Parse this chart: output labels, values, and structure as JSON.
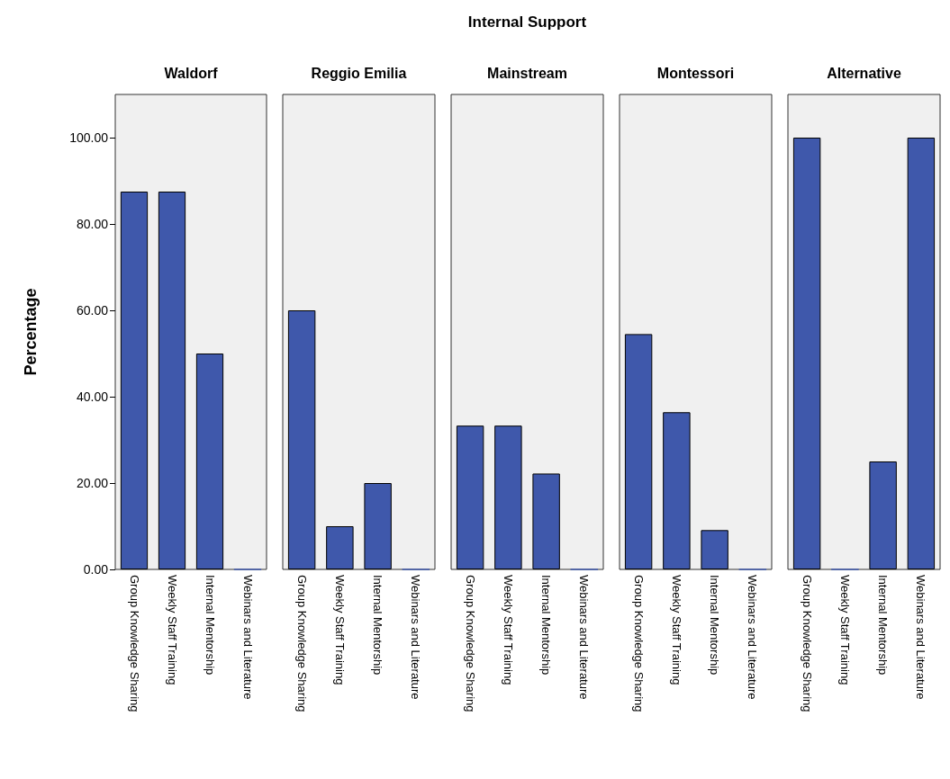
{
  "chart_data": [
    {
      "type": "bar",
      "subtitle": "Waldorf",
      "ylabel": "Percentage",
      "categories": [
        "Group Knowledge Sharing",
        "Weekly Staff Training",
        "Internal Mentorship",
        "Webinars and Literature"
      ],
      "values": [
        87.5,
        87.5,
        50,
        0
      ],
      "color": "#3f58ab",
      "ylim": [
        0,
        110
      ],
      "yticks": [
        {
          "value": 0,
          "label": "0.00"
        },
        {
          "value": 20,
          "label": "20.00"
        },
        {
          "value": 40,
          "label": "40.00"
        },
        {
          "value": 60,
          "label": "60.00"
        },
        {
          "value": 80,
          "label": "80.00"
        },
        {
          "value": 100,
          "label": "100.00"
        }
      ],
      "grid": false
    },
    {
      "type": "bar",
      "subtitle": "Reggio Emilia",
      "categories": [
        "Group Knowledge Sharing",
        "Weekly Staff Training",
        "Internal Mentorship",
        "Webinars and Literature"
      ],
      "values": [
        60,
        10,
        20,
        0
      ],
      "color": "#3f58ab",
      "ylim": [
        0,
        110
      ],
      "tick_labels": "x",
      "grid": false
    },
    {
      "type": "bar",
      "title": "Internal Support",
      "subtitle": "Mainstream",
      "categories": [
        "Group Knowledge Sharing",
        "Weekly Staff Training",
        "Internal Mentorship",
        "Webinars and Literature"
      ],
      "values": [
        33.3,
        33.3,
        22.2,
        0
      ],
      "color": "#3f58ab",
      "ylim": [
        0,
        110
      ],
      "tick_labels": "x",
      "grid": false
    },
    {
      "type": "bar",
      "subtitle": "Montessori",
      "categories": [
        "Group Knowledge Sharing",
        "Weekly Staff Training",
        "Internal Mentorship",
        "Webinars and Literature"
      ],
      "values": [
        54.5,
        36.4,
        9.1,
        0
      ],
      "color": "#3f58ab",
      "ylim": [
        0,
        110
      ],
      "tick_labels": "x",
      "grid": false
    },
    {
      "type": "bar",
      "subtitle": "Alternative",
      "categories": [
        "Group Knowledge Sharing",
        "Weekly Staff Training",
        "Internal Mentorship",
        "Webinars and Literature"
      ],
      "values": [
        100,
        0,
        25,
        100
      ],
      "color": "#3f58ab",
      "ylim": [
        0,
        110
      ],
      "tick_labels": "x",
      "grid": false
    }
  ]
}
